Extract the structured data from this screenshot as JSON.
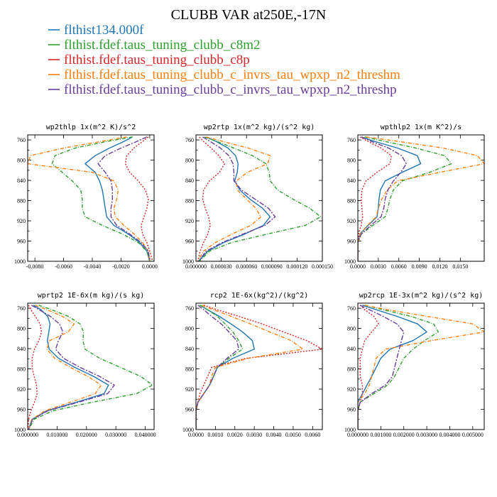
{
  "figure_title": "CLUBB VAR at250E,-17N",
  "colors": {
    "flthist134.000f": "#1f77b4",
    "flthist.fdef.taus_tuning_clubb_c8m2": "#2ca02c",
    "flthist.fdef.taus_tuning_clubb_c8p": "#d62728",
    "flthist.fdef.taus_tuning_clubb_c_invrs_tau_wpxp_n2_threshm": "#ff7f0e",
    "flthist.fdef.taus_tuning_clubb_c_invrs_tau_wpxp_n2_threshp": "#6a3d9a"
  },
  "dashes": {
    "flthist134.000f": "",
    "flthist.fdef.taus_tuning_clubb_c8m2": "5,2,1,2",
    "flthist.fdef.taus_tuning_clubb_c8p": "2,2",
    "flthist.fdef.taus_tuning_clubb_c_invrs_tau_wpxp_n2_threshm": "5,2,1,2",
    "flthist.fdef.taus_tuning_clubb_c_invrs_tau_wpxp_n2_threshp": "7,2,2,2"
  },
  "legend": [
    "flthist134.000f",
    "flthist.fdef.taus_tuning_clubb_c8m2",
    "flthist.fdef.taus_tuning_clubb_c8p",
    "flthist.fdef.taus_tuning_clubb_c_invrs_tau_wpxp_n2_threshm",
    "flthist.fdef.taus_tuning_clubb_c_invrs_tau_wpxp_n2_threshp"
  ],
  "chart_data": [
    {
      "type": "line",
      "title": "wp2thlp  1x(m^2 K)/s^2",
      "xlim": [
        -0.0085,
        0.0003
      ],
      "ylim": [
        1000,
        750
      ],
      "xticks": [
        -0.008,
        -0.006,
        -0.004,
        -0.002,
        0.0
      ],
      "xtick_labels": [
        "-0.0080",
        "-0.0060",
        "-0.0040",
        "-0.0020",
        "0.0000"
      ],
      "yticks": [
        760,
        800,
        840,
        880,
        920,
        960,
        1000
      ],
      "y": [
        754,
        763,
        776,
        791,
        807,
        824,
        841,
        859,
        877,
        895,
        912,
        929,
        946,
        963,
        980,
        1000
      ],
      "series": [
        {
          "name": "flthist134.000f",
          "values": [
            -0.0012,
            -0.0018,
            -0.0028,
            -0.0038,
            -0.0045,
            -0.0038,
            -0.0035,
            -0.0033,
            -0.0032,
            -0.0031,
            -0.003,
            -0.0025,
            -0.0015,
            -0.0007,
            -0.0002,
            0.0
          ]
        },
        {
          "name": "flthist.fdef.taus_tuning_clubb_c8m2",
          "values": [
            -0.0012,
            -0.003,
            -0.0052,
            -0.0066,
            -0.0068,
            -0.0061,
            -0.0054,
            -0.0048,
            -0.0047,
            -0.0047,
            -0.0045,
            -0.0033,
            -0.0019,
            -0.0008,
            -0.0002,
            0.0
          ]
        },
        {
          "name": "flthist.fdef.taus_tuning_clubb_c8p",
          "values": [
            -0.0001,
            -0.0005,
            -0.0011,
            -0.0016,
            -0.0017,
            -0.0014,
            -0.0008,
            -0.0003,
            -0.0001,
            -0.0002,
            -0.0004,
            -0.0006,
            -0.0005,
            -0.0002,
            0.0,
            0.0002
          ]
        },
        {
          "name": "flthist.fdef.taus_tuning_clubb_c_invrs_tau_wpxp_n2_threshm",
          "values": [
            -0.0016,
            -0.0034,
            -0.006,
            -0.0083,
            -0.0085,
            -0.004,
            -0.0025,
            -0.0022,
            -0.0023,
            -0.0025,
            -0.0024,
            -0.0018,
            -0.0011,
            -0.0005,
            -0.0001,
            0.0
          ]
        },
        {
          "name": "flthist.fdef.taus_tuning_clubb_c_invrs_tau_wpxp_n2_threshp",
          "values": [
            -0.0002,
            -0.0009,
            -0.002,
            -0.0031,
            -0.0036,
            -0.0031,
            -0.0027,
            -0.0026,
            -0.0026,
            -0.0027,
            -0.0027,
            -0.0023,
            -0.0014,
            -0.0006,
            -0.0001,
            0.0
          ]
        }
      ]
    },
    {
      "type": "line",
      "title": "wp2rtp  1x(m^2 kg)/(s^2 kg)",
      "xlim": [
        0.0,
        0.00015
      ],
      "ylim": [
        1000,
        750
      ],
      "xticks": [
        0.0,
        3e-05,
        6e-05,
        9e-05,
        0.00012,
        0.00015
      ],
      "xtick_labels": [
        "0.000000",
        "0.000030",
        "0.000060",
        "0.000090",
        "0.000120",
        "0.000150"
      ],
      "yticks": [
        760,
        800,
        840,
        880,
        920,
        960,
        1000
      ],
      "y": [
        754,
        763,
        776,
        791,
        807,
        824,
        841,
        859,
        877,
        895,
        912,
        929,
        946,
        963,
        980,
        1000
      ],
      "series": [
        {
          "name": "flthist134.000f",
          "values": [
            1.2e-05,
            2.4e-05,
            3.8e-05,
            4.7e-05,
            5e-05,
            4.9e-05,
            4.6e-05,
            5.2e-05,
            6.4e-05,
            7.9e-05,
            8.8e-05,
            8e-05,
            5.8e-05,
            3.3e-05,
            1.4e-05,
            3e-06
          ]
        },
        {
          "name": "flthist.fdef.taus_tuning_clubb_c8m2",
          "values": [
            1e-05,
            2.5e-05,
            4.5e-05,
            6.7e-05,
            8.3e-05,
            8.7e-05,
            8.8e-05,
            9.7e-05,
            0.000115,
            0.000135,
            0.000148,
            0.00013,
            8.5e-05,
            4.2e-05,
            1.6e-05,
            4e-06
          ]
        },
        {
          "name": "flthist.fdef.taus_tuning_clubb_c8p",
          "values": [
            4e-06,
            9e-06,
            1.8e-05,
            2.7e-05,
            3.4e-05,
            2.8e-05,
            1.6e-05,
            9e-06,
            8e-06,
            1.1e-05,
            1.5e-05,
            1.7e-05,
            1.4e-05,
            9e-06,
            5e-06,
            2e-06
          ]
        },
        {
          "name": "flthist.fdef.taus_tuning_clubb_c_invrs_tau_wpxp_n2_threshm",
          "values": [
            1.2e-05,
            3.2e-05,
            6.2e-05,
            8.8e-05,
            8.5e-05,
            6.1e-05,
            4.8e-05,
            4.9e-05,
            6e-05,
            7.1e-05,
            7.7e-05,
            6.5e-05,
            4.3e-05,
            2.3e-05,
            9e-06,
            2e-06
          ]
        },
        {
          "name": "flthist.fdef.taus_tuning_clubb_c_invrs_tau_wpxp_n2_threshp",
          "values": [
            8e-06,
            1.7e-05,
            2.9e-05,
            3.9e-05,
            4.4e-05,
            4.5e-05,
            4.5e-05,
            5.4e-05,
            7e-05,
            8.6e-05,
            9.4e-05,
            8.2e-05,
            5.6e-05,
            3.1e-05,
            1.2e-05,
            3e-06
          ]
        }
      ]
    },
    {
      "type": "line",
      "title": "wpthlp2  1x(m K^2)/s",
      "xlim": [
        0.0,
        0.0185
      ],
      "ylim": [
        1000,
        750
      ],
      "xticks": [
        0.0,
        0.003,
        0.006,
        0.009,
        0.012,
        0.015
      ],
      "xtick_labels": [
        "0.0000",
        "0.0030",
        "0.0060",
        "0.0090",
        "0.0120",
        "0.0150"
      ],
      "yticks": [
        760,
        800,
        840,
        880,
        920,
        960,
        1000
      ],
      "y": [
        754,
        763,
        776,
        791,
        807,
        824,
        841,
        859,
        877,
        895,
        912,
        929,
        946,
        963,
        980,
        1000
      ],
      "series": [
        {
          "name": "flthist134.000f",
          "values": [
            0.0005,
            0.0025,
            0.0058,
            0.0087,
            0.0092,
            0.0065,
            0.004,
            0.0033,
            0.0031,
            0.003,
            0.0028,
            0.0015,
            0.0003,
            0.0,
            0.0,
            0.0
          ]
        },
        {
          "name": "flthist.fdef.taus_tuning_clubb_c8m2",
          "values": [
            0.001,
            0.004,
            0.0085,
            0.0127,
            0.0137,
            0.0105,
            0.0065,
            0.0052,
            0.0047,
            0.0044,
            0.004,
            0.0022,
            0.0005,
            0.0,
            0.0,
            0.0
          ]
        },
        {
          "name": "flthist.fdef.taus_tuning_clubb_c8p",
          "values": [
            0.0003,
            0.0015,
            0.0034,
            0.0049,
            0.0047,
            0.0028,
            0.0012,
            0.0006,
            0.0005,
            0.0006,
            0.0007,
            0.0005,
            0.0001,
            0.0,
            0.0,
            0.0
          ]
        },
        {
          "name": "flthist.fdef.taus_tuning_clubb_c_invrs_tau_wpxp_n2_threshm",
          "values": [
            0.0012,
            0.006,
            0.0125,
            0.0175,
            0.0185,
            0.012,
            0.0058,
            0.0043,
            0.0035,
            0.003,
            0.0027,
            0.0014,
            0.0003,
            0.0,
            0.0,
            0.0
          ]
        },
        {
          "name": "flthist.fdef.taus_tuning_clubb_c_invrs_tau_wpxp_n2_threshp",
          "values": [
            0.0005,
            0.002,
            0.0045,
            0.0064,
            0.0071,
            0.0063,
            0.0052,
            0.0044,
            0.004,
            0.0038,
            0.0034,
            0.0019,
            0.0005,
            0.0,
            0.0,
            0.0
          ]
        }
      ]
    },
    {
      "type": "line",
      "title": "wprtp2  1E-6x(m kg)/(s kg)",
      "xlim": [
        0.0,
        0.043
      ],
      "ylim": [
        1000,
        750
      ],
      "xticks": [
        0.0,
        0.01,
        0.02,
        0.03,
        0.04
      ],
      "xtick_labels": [
        "0.000000",
        "0.010000",
        "0.020000",
        "0.030000",
        "0.040000"
      ],
      "yticks": [
        760,
        800,
        840,
        880,
        920,
        960,
        1000
      ],
      "y": [
        754,
        763,
        776,
        791,
        807,
        824,
        841,
        859,
        877,
        895,
        912,
        929,
        946,
        963,
        980,
        1000
      ],
      "series": [
        {
          "name": "flthist134.000f",
          "values": [
            0.002,
            0.0045,
            0.0068,
            0.0076,
            0.0072,
            0.0067,
            0.0073,
            0.0105,
            0.016,
            0.0225,
            0.0275,
            0.026,
            0.0165,
            0.0065,
            0.0015,
            0.0003
          ]
        },
        {
          "name": "flthist.fdef.taus_tuning_clubb_c8m2",
          "values": [
            0.0038,
            0.0082,
            0.0138,
            0.0178,
            0.019,
            0.0188,
            0.0195,
            0.0245,
            0.0315,
            0.0385,
            0.0425,
            0.037,
            0.022,
            0.0085,
            0.0021,
            0.0004
          ]
        },
        {
          "name": "flthist.fdef.taus_tuning_clubb_c8p",
          "values": [
            0.0003,
            0.0011,
            0.0026,
            0.0042,
            0.0047,
            0.0038,
            0.0023,
            0.0015,
            0.0015,
            0.0022,
            0.003,
            0.0032,
            0.0023,
            0.0011,
            0.0003,
            0.0001
          ]
        },
        {
          "name": "flthist.fdef.taus_tuning_clubb_c_invrs_tau_wpxp_n2_threshm",
          "values": [
            0.0025,
            0.0066,
            0.0118,
            0.0158,
            0.0138,
            0.0075,
            0.0065,
            0.0092,
            0.0145,
            0.0205,
            0.025,
            0.023,
            0.0145,
            0.0058,
            0.0014,
            0.0003
          ]
        },
        {
          "name": "flthist.fdef.taus_tuning_clubb_c_invrs_tau_wpxp_n2_threshp",
          "values": [
            0.0013,
            0.0039,
            0.0077,
            0.0108,
            0.012,
            0.0105,
            0.0095,
            0.0122,
            0.0178,
            0.0245,
            0.0295,
            0.0272,
            0.0172,
            0.0068,
            0.0016,
            0.0003
          ]
        }
      ]
    },
    {
      "type": "line",
      "title": "rcp2  1E-6x(kg^2)/(kg^2)",
      "xlim": [
        0.0,
        0.0065
      ],
      "ylim": [
        1000,
        750
      ],
      "xticks": [
        0.0,
        0.001,
        0.002,
        0.003,
        0.004,
        0.005,
        0.006
      ],
      "xtick_labels": [
        "0.0000",
        "0.0010",
        "0.0020",
        "0.0030",
        "0.0040",
        "0.0050",
        "0.0060"
      ],
      "yticks": [
        760,
        800,
        840,
        880,
        920,
        960,
        1000
      ],
      "y": [
        754,
        763,
        776,
        791,
        807,
        824,
        841,
        859,
        877,
        895,
        912,
        929,
        946,
        963,
        980,
        1000
      ],
      "series": [
        {
          "name": "flthist134.000f",
          "values": [
            0.0002,
            0.0006,
            0.0012,
            0.0018,
            0.0024,
            0.0029,
            0.003,
            0.0019,
            0.0011,
            0.0009,
            0.0007,
            0.0004,
            0.0001,
            0.0,
            0.0,
            0.0
          ]
        },
        {
          "name": "flthist.fdef.taus_tuning_clubb_c8m2",
          "values": [
            0.0002,
            0.0006,
            0.0011,
            0.0015,
            0.0019,
            0.0022,
            0.0024,
            0.0017,
            0.0011,
            0.0009,
            0.0007,
            0.0004,
            0.0001,
            0.0,
            0.0,
            0.0
          ]
        },
        {
          "name": "flthist.fdef.taus_tuning_clubb_c8p",
          "values": [
            0.0004,
            0.0011,
            0.0022,
            0.0034,
            0.0045,
            0.0057,
            0.0065,
            0.0026,
            0.0008,
            0.0006,
            0.0004,
            0.0002,
            0.0001,
            0.0,
            0.0,
            0.0
          ]
        },
        {
          "name": "flthist.fdef.taus_tuning_clubb_c_invrs_tau_wpxp_n2_threshm",
          "values": [
            0.0003,
            0.0009,
            0.0018,
            0.0028,
            0.0038,
            0.0049,
            0.0055,
            0.0027,
            0.001,
            0.0008,
            0.0007,
            0.0004,
            0.0001,
            0.0,
            0.0,
            0.0
          ]
        },
        {
          "name": "flthist.fdef.taus_tuning_clubb_c_invrs_tau_wpxp_n2_threshp",
          "values": [
            0.0001,
            0.0004,
            0.0008,
            0.0013,
            0.0017,
            0.0021,
            0.0022,
            0.0016,
            0.0011,
            0.0009,
            0.0007,
            0.0004,
            0.0001,
            0.0,
            0.0,
            0.0
          ]
        }
      ]
    },
    {
      "type": "line",
      "title": "wp2rcp  1E-3x(m^2 kg)/(s^2 kg)",
      "xlim": [
        0.0,
        0.0055
      ],
      "ylim": [
        1000,
        750
      ],
      "xticks": [
        0.0,
        0.001,
        0.002,
        0.003,
        0.004,
        0.005
      ],
      "xtick_labels": [
        "0.000000",
        "0.001000",
        "0.002000",
        "0.003000",
        "0.004000",
        "0.005000"
      ],
      "yticks": [
        760,
        800,
        840,
        880,
        920,
        960,
        1000
      ],
      "y": [
        754,
        763,
        776,
        791,
        807,
        824,
        841,
        859,
        877,
        895,
        912,
        929,
        946,
        963,
        980,
        1000
      ],
      "series": [
        {
          "name": "flthist134.000f",
          "values": [
            0.0002,
            0.0008,
            0.0017,
            0.0026,
            0.003,
            0.0024,
            0.0014,
            0.001,
            0.0008,
            0.0006,
            0.0004,
            0.0002,
            0.0,
            0.0,
            0.0,
            0.0
          ]
        },
        {
          "name": "flthist.fdef.taus_tuning_clubb_c8m2",
          "values": [
            0.0003,
            0.0011,
            0.0023,
            0.0033,
            0.0035,
            0.0029,
            0.0024,
            0.002,
            0.0018,
            0.0016,
            0.0013,
            0.0007,
            0.0001,
            0.0,
            0.0,
            0.0
          ]
        },
        {
          "name": "flthist.fdef.taus_tuning_clubb_c8p",
          "values": [
            0.0001,
            0.0003,
            0.0007,
            0.0009,
            0.0006,
            0.0003,
            0.0002,
            0.0001,
            0.0001,
            0.0001,
            0.0002,
            0.0002,
            0.0001,
            0.0,
            0.0,
            0.0
          ]
        },
        {
          "name": "flthist.fdef.taus_tuning_clubb_c_invrs_tau_wpxp_n2_threshm",
          "values": [
            0.0003,
            0.0013,
            0.003,
            0.005,
            0.0055,
            0.0032,
            0.0012,
            0.0008,
            0.0007,
            0.0006,
            0.0005,
            0.0003,
            0.0,
            0.0,
            0.0,
            0.0
          ]
        },
        {
          "name": "flthist.fdef.taus_tuning_clubb_c_invrs_tau_wpxp_n2_threshp",
          "values": [
            0.0001,
            0.0005,
            0.0011,
            0.0017,
            0.002,
            0.0019,
            0.0018,
            0.0017,
            0.0016,
            0.0015,
            0.0012,
            0.0006,
            0.0001,
            0.0,
            0.0,
            0.0
          ]
        }
      ]
    }
  ]
}
